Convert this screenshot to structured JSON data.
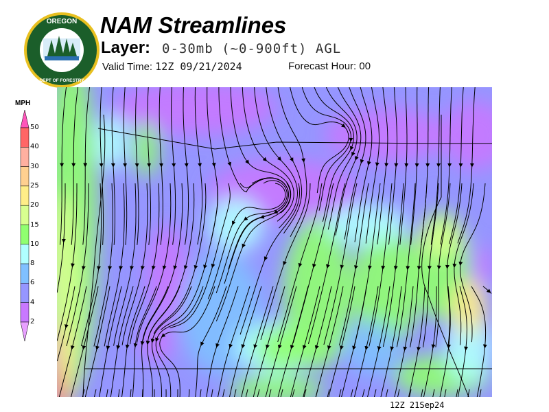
{
  "header": {
    "title": "NAM Streamlines",
    "layer_label": "Layer:",
    "layer_value": "0-30mb (~0-900ft) AGL",
    "valid_label": "Valid Time:",
    "valid_value": "12Z 09/21/2024",
    "forecast_label": "Forecast Hour:",
    "forecast_value": "00"
  },
  "logo": {
    "text_top": "OREGON",
    "text_bottom": "DEPARTMENT OF FORESTRY"
  },
  "legend": {
    "unit": "MPH",
    "ticks": [
      "50",
      "40",
      "30",
      "25",
      "20",
      "15",
      "10",
      "8",
      "6",
      "4",
      "2"
    ],
    "colors": [
      "#ff6666",
      "#ffb0a0",
      "#ffd090",
      "#ffee88",
      "#d8ff90",
      "#90ff70",
      "#b0ffff",
      "#80c0ff",
      "#9696ff",
      "#c878ff"
    ],
    "top_arrow_color": "#ff55bb",
    "bottom_arrow_color": "#e8a0ff"
  },
  "footer": {
    "timestamp": "12Z 21Sep24"
  }
}
